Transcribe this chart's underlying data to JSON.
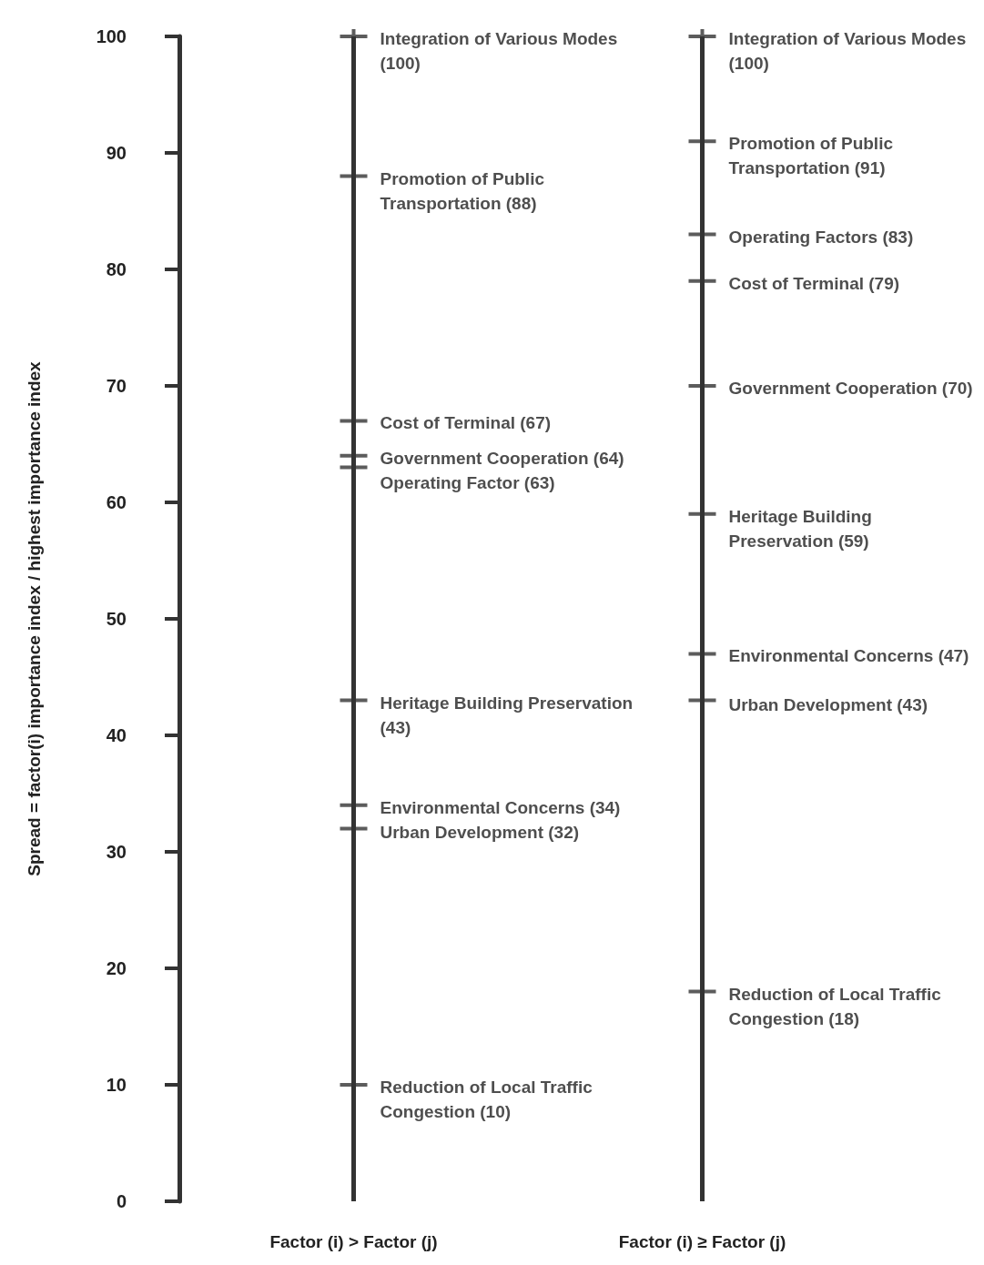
{
  "chart_data": {
    "type": "scatter",
    "ylabel": "Spread = factor(i) importance index / highest importance index",
    "categories": [
      "Factor (i) > Factor (j)",
      "Factor (i) ≥ Factor (j)"
    ],
    "ylim": [
      0,
      100
    ],
    "yticks": [
      0,
      10,
      20,
      30,
      40,
      50,
      60,
      70,
      80,
      90,
      100
    ],
    "grid": "x",
    "marker": "cross",
    "series": [
      {
        "color": "#333333",
        "x": [
          "Factor (i) > Factor (j)",
          "Factor (i) > Factor (j)",
          "Factor (i) > Factor (j)",
          "Factor (i) > Factor (j)",
          "Factor (i) > Factor (j)",
          "Factor (i) > Factor (j)",
          "Factor (i) > Factor (j)",
          "Factor (i) > Factor (j)",
          "Factor (i) > Factor (j)"
        ],
        "values": [
          100,
          88,
          67,
          64,
          63,
          43,
          34,
          32,
          10
        ],
        "value_labels": [
          "Integration of Various Modes (100)",
          "Promotion of Public Transportation (88)",
          "Cost of Terminal (67)",
          "Government Cooperation (64)",
          "Operating Factor (63)",
          "Heritage Building Preservation (43)",
          "Environmental Concerns (34)",
          "Urban Development (32)",
          "Reduction of Local Traffic Congestion (10)"
        ]
      },
      {
        "color": "#333333",
        "x": [
          "Factor (i) ≥ Factor (j)",
          "Factor (i) ≥ Factor (j)",
          "Factor (i) ≥ Factor (j)",
          "Factor (i) ≥ Factor (j)",
          "Factor (i) ≥ Factor (j)",
          "Factor (i) ≥ Factor (j)",
          "Factor (i) ≥ Factor (j)",
          "Factor (i) ≥ Factor (j)",
          "Factor (i) ≥ Factor (j)"
        ],
        "values": [
          100,
          91,
          83,
          79,
          70,
          59,
          47,
          43,
          18
        ],
        "value_labels": [
          "Integration of Various Modes (100)",
          "Promotion of Public Transportation (91)",
          "Operating Factors (83)",
          "Cost of Terminal (79)",
          "Government Cooperation (70)",
          "Heritage Building Preservation (59)",
          "Environmental Concerns (47)",
          "Urban Development (43)",
          "Reduction of Local Traffic Congestion (18)"
        ]
      }
    ]
  }
}
